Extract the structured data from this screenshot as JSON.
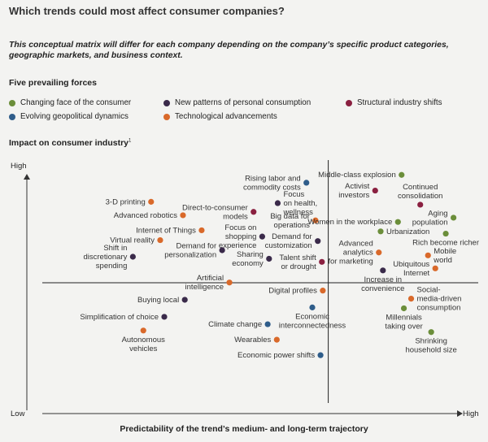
{
  "title": "Which trends could most affect consumer companies?",
  "subtitle": "This conceptual matrix will differ for each company depending on the company’s specific product categories, geographic markets, and business context.",
  "legend": {
    "title": "Five prevailing forces",
    "items": [
      {
        "label": "Changing face of the consumer",
        "color": "#6b8e3a"
      },
      {
        "label": "New patterns of personal consumption",
        "color": "#3a2a4a"
      },
      {
        "label": "Structural industry shifts",
        "color": "#8a2040"
      },
      {
        "label": "Evolving geopolitical dynamics",
        "color": "#2f5d8a"
      },
      {
        "label": "Technological advancements",
        "color": "#d9692a"
      }
    ]
  },
  "axes": {
    "y_title": "Impact on consumer industry",
    "y_title_footnote": "1",
    "y_high": "High",
    "x_low": "Low",
    "x_high": "High",
    "x_title": "Predictability of the trend’s medium- and long-term trajectory"
  },
  "chart_data": {
    "type": "scatter",
    "title": "Which trends could most affect consumer companies?",
    "xlabel": "Predictability of the trend’s medium- and long-term trajectory",
    "ylabel": "Impact on consumer industry",
    "xlim": [
      0,
      100
    ],
    "ylim": [
      0,
      100
    ],
    "quadrant_dividers": {
      "x": 66,
      "y": 50
    },
    "points": [
      {
        "lines": [
          "Rising labor and",
          "commodity costs"
        ],
        "x": 61.2,
        "y": 94.6,
        "force": 3,
        "label_side": "left"
      },
      {
        "lines": [
          "Focus",
          "on health,",
          "wellness"
        ],
        "x": 54.9,
        "y": 85.5,
        "force": 1,
        "label_side": "right"
      },
      {
        "lines": [
          "Direct-to-consumer",
          "models"
        ],
        "x": 49.6,
        "y": 81.6,
        "force": 2,
        "label_side": "left"
      },
      {
        "lines": [
          "3-D printing"
        ],
        "x": 27.1,
        "y": 86.1,
        "force": 4,
        "label_side": "left"
      },
      {
        "lines": [
          "Advanced robotics"
        ],
        "x": 34.1,
        "y": 80.1,
        "force": 4,
        "label_side": "left"
      },
      {
        "lines": [
          "Internet of Things"
        ],
        "x": 38.2,
        "y": 73.4,
        "force": 4,
        "label_side": "left"
      },
      {
        "lines": [
          "Big data for",
          "operations"
        ],
        "x": 63.2,
        "y": 77.8,
        "force": 4,
        "label_side": "left"
      },
      {
        "lines": [
          "Focus on",
          "shopping",
          "experience"
        ],
        "x": 51.5,
        "y": 70.6,
        "force": 1,
        "label_side": "left"
      },
      {
        "lines": [
          "Demand for",
          "customization"
        ],
        "x": 63.7,
        "y": 68.6,
        "force": 1,
        "label_side": "left"
      },
      {
        "lines": [
          "Virtual reality"
        ],
        "x": 29.1,
        "y": 69.0,
        "force": 4,
        "label_side": "left"
      },
      {
        "lines": [
          "Demand for",
          "personalization"
        ],
        "x": 42.7,
        "y": 64.5,
        "force": 1,
        "label_side": "left"
      },
      {
        "lines": [
          "Shift in",
          "discretionary",
          "spending"
        ],
        "x": 23.1,
        "y": 61.6,
        "force": 1,
        "label_side": "left"
      },
      {
        "lines": [
          "Sharing",
          "economy"
        ],
        "x": 53.0,
        "y": 60.7,
        "force": 1,
        "label_side": "left"
      },
      {
        "lines": [
          "Talent shift",
          "or drought"
        ],
        "x": 64.6,
        "y": 59.3,
        "force": 2,
        "label_side": "left"
      },
      {
        "lines": [
          "Artificial",
          "intelligence"
        ],
        "x": 44.3,
        "y": 50.1,
        "force": 4,
        "label_side": "left"
      },
      {
        "lines": [
          "Digital profiles"
        ],
        "x": 64.8,
        "y": 46.5,
        "force": 4,
        "label_side": "left"
      },
      {
        "lines": [
          "Buying local"
        ],
        "x": 34.5,
        "y": 42.4,
        "force": 1,
        "label_side": "left"
      },
      {
        "lines": [
          "Economic",
          "interconnectedness"
        ],
        "x": 62.5,
        "y": 39.0,
        "force": 3,
        "label_side": "below"
      },
      {
        "lines": [
          "Simplification of choice"
        ],
        "x": 30.0,
        "y": 34.8,
        "force": 1,
        "label_side": "left"
      },
      {
        "lines": [
          "Climate change"
        ],
        "x": 52.7,
        "y": 31.5,
        "force": 3,
        "label_side": "left"
      },
      {
        "lines": [
          "Autonomous",
          "vehicles"
        ],
        "x": 25.4,
        "y": 28.7,
        "force": 4,
        "label_side": "below"
      },
      {
        "lines": [
          "Wearables"
        ],
        "x": 54.7,
        "y": 24.6,
        "force": 4,
        "label_side": "left"
      },
      {
        "lines": [
          "Economic power shifts"
        ],
        "x": 64.3,
        "y": 17.7,
        "force": 3,
        "label_side": "left"
      },
      {
        "lines": [
          "Middle-class explosion"
        ],
        "x": 82.1,
        "y": 98.1,
        "force": 0,
        "label_side": "left"
      },
      {
        "lines": [
          "Activist",
          "investors"
        ],
        "x": 76.3,
        "y": 91.1,
        "force": 2,
        "label_side": "left"
      },
      {
        "lines": [
          "Continued",
          "consolidation"
        ],
        "x": 86.2,
        "y": 84.8,
        "force": 2,
        "label_side": "above"
      },
      {
        "lines": [
          "Women in the workplace"
        ],
        "x": 81.3,
        "y": 77.1,
        "force": 0,
        "label_side": "left"
      },
      {
        "lines": [
          "Aging",
          "population"
        ],
        "x": 93.5,
        "y": 79.0,
        "force": 0,
        "label_side": "left"
      },
      {
        "lines": [
          "Urbanization"
        ],
        "x": 77.5,
        "y": 72.9,
        "force": 0,
        "label_side": "right"
      },
      {
        "lines": [
          "Rich become richer"
        ],
        "x": 91.8,
        "y": 71.9,
        "force": 0,
        "label_side": "below"
      },
      {
        "lines": [
          "Advanced",
          "analytics",
          "for marketing"
        ],
        "x": 77.1,
        "y": 63.5,
        "force": 4,
        "label_side": "left"
      },
      {
        "lines": [
          "Mobile",
          "world"
        ],
        "x": 87.9,
        "y": 62.2,
        "force": 4,
        "label_side": "right"
      },
      {
        "lines": [
          "Ubiquitous",
          "Internet"
        ],
        "x": 89.5,
        "y": 56.4,
        "force": 4,
        "label_side": "left"
      },
      {
        "lines": [
          "Increase in",
          "convenience"
        ],
        "x": 78.0,
        "y": 55.5,
        "force": 1,
        "label_side": "below"
      },
      {
        "lines": [
          "Social-",
          "media-driven",
          "consumption"
        ],
        "x": 84.2,
        "y": 42.9,
        "force": 4,
        "label_side": "right"
      },
      {
        "lines": [
          "Millennials",
          "taking over"
        ],
        "x": 82.6,
        "y": 38.6,
        "force": 0,
        "label_side": "below"
      },
      {
        "lines": [
          "Shrinking",
          "household size"
        ],
        "x": 88.6,
        "y": 28.0,
        "force": 0,
        "label_side": "below"
      }
    ]
  }
}
